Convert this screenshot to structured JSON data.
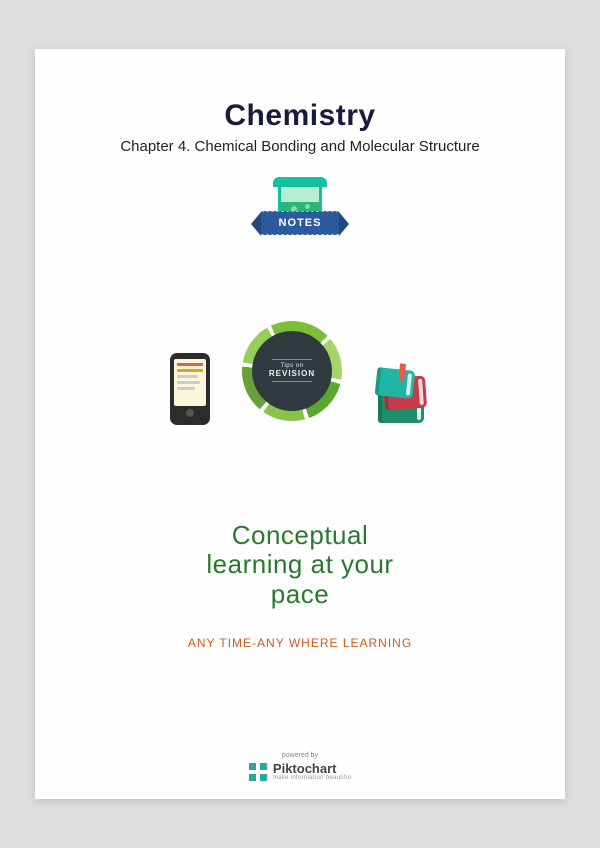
{
  "header": {
    "title": "Chemistry",
    "subtitle": "Chapter 4. Chemical Bonding and Molecular Structure",
    "ribbon_label": "NOTES"
  },
  "circle": {
    "tips_label": "Tips on",
    "revision_label": "REVISION"
  },
  "tagline": {
    "line1": "Conceptual",
    "line2": "learning at your",
    "line3": "pace"
  },
  "subtag": "ANY TIME-ANY WHERE LEARNING",
  "footer": {
    "powered_by": "powered by",
    "brand_bold": "Pikto",
    "brand_rest": "chart",
    "slogan": "make information beautiful"
  },
  "colors": {
    "title_color": "#1a1a3d",
    "tagline_color": "#2a7a2e",
    "subtag_color": "#d15a1e",
    "ribbon_bg": "#2b5a9e",
    "page_bg": "#fefefe",
    "body_bg": "#dedede"
  }
}
